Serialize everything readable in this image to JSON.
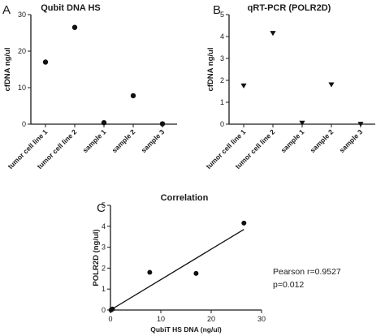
{
  "chart_data": [
    {
      "panel": "A",
      "type": "scatter",
      "title": "Qubit DNA HS",
      "ylabel": "cfDNA ng/ul",
      "xlabel": "",
      "categories": [
        "tumor cell line 1",
        "tumor cell line 2",
        "sample 1",
        "sample 2",
        "sample 3"
      ],
      "values": [
        17.0,
        26.5,
        0.4,
        7.8,
        0.1
      ],
      "ylim": [
        0,
        30
      ],
      "yticks": [
        "0",
        "10",
        "20",
        "30"
      ],
      "marker": "circle",
      "grid": false
    },
    {
      "panel": "B",
      "type": "scatter",
      "title": "qRT-PCR (POLR2D)",
      "ylabel": "cfDNA ng/ul",
      "xlabel": "",
      "categories": [
        "tumor cell line 1",
        "tumor cell line 2",
        "sample 1",
        "sample 2",
        "sample 3"
      ],
      "values": [
        1.75,
        4.15,
        0.05,
        1.8,
        0.0
      ],
      "ylim": [
        0,
        5
      ],
      "yticks": [
        "0",
        "1",
        "2",
        "3",
        "4",
        "5"
      ],
      "marker": "triangle-down",
      "grid": false
    },
    {
      "panel": "C",
      "type": "scatter",
      "title": "Correlation",
      "xlabel": "QubiT HS DNA (ng/ul)",
      "ylabel": "POLR2D (ng/ul)",
      "x": [
        17.0,
        26.5,
        0.4,
        7.8,
        0.1
      ],
      "y": [
        1.75,
        4.15,
        0.05,
        1.8,
        0.0
      ],
      "xlim": [
        0,
        30
      ],
      "ylim": [
        0,
        5
      ],
      "xticks": [
        "0",
        "10",
        "20",
        "30"
      ],
      "yticks": [
        "0",
        "1",
        "2",
        "3",
        "4",
        "5"
      ],
      "fit_line": {
        "x": [
          0,
          26.5
        ],
        "y": [
          0.0,
          3.85
        ]
      },
      "annotations": [
        "Pearson r=0.9527",
        "p=0.012"
      ],
      "marker": "circle",
      "grid": false
    }
  ]
}
